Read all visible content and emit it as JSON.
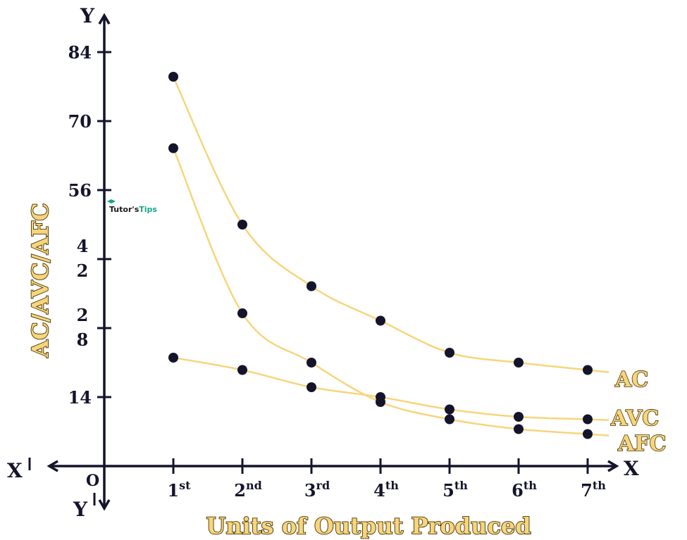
{
  "chart_data": {
    "type": "line",
    "categories": [
      "1st",
      "2nd",
      "3rd",
      "4th",
      "5th",
      "6th",
      "7th"
    ],
    "category_parts": [
      {
        "n": "1",
        "sup": "st"
      },
      {
        "n": "2",
        "sup": "nd"
      },
      {
        "n": "3",
        "sup": "rd"
      },
      {
        "n": "4",
        "sup": "th"
      },
      {
        "n": "5",
        "sup": "th"
      },
      {
        "n": "6",
        "sup": "th"
      },
      {
        "n": "7",
        "sup": "th"
      }
    ],
    "series": [
      {
        "name": "AC",
        "values": [
          79,
          49,
          36.5,
          29.5,
          23,
          21,
          19.5
        ]
      },
      {
        "name": "AVC",
        "values": [
          22,
          19.5,
          16,
          14,
          11.5,
          10,
          9.5
        ]
      },
      {
        "name": "AFC",
        "values": [
          64.5,
          31,
          21,
          13,
          9.5,
          7.5,
          6.5
        ]
      }
    ],
    "ylim": [
      0,
      84
    ],
    "y_ticks": [
      14,
      28,
      42,
      56,
      70,
      84
    ],
    "y_tick_labels": [
      {
        "value": 84,
        "lines": [
          "84"
        ]
      },
      {
        "value": 70,
        "lines": [
          "70"
        ]
      },
      {
        "value": 56,
        "lines": [
          "56"
        ]
      },
      {
        "value": 42,
        "lines": [
          "4",
          "2"
        ]
      },
      {
        "value": 28,
        "lines": [
          "2",
          "8"
        ]
      },
      {
        "value": 14,
        "lines": [
          "14"
        ]
      }
    ],
    "xlabel": "Units of Output Produced",
    "ylabel": "AC/AVC/AFC",
    "axis_letters": {
      "y": "Y",
      "x": "X",
      "x_neg": "X",
      "y_neg": "Y",
      "origin": "O"
    },
    "watermark": {
      "part1": "Tutor's",
      "part2": "Tips"
    },
    "grid": false,
    "legend": "curve-end labels on the right",
    "colors": {
      "curve": "#f6d57c",
      "point": "#14142b",
      "axis": "#14142b",
      "label_fill": "#f6d57c",
      "label_stroke": "#4a3200"
    }
  }
}
